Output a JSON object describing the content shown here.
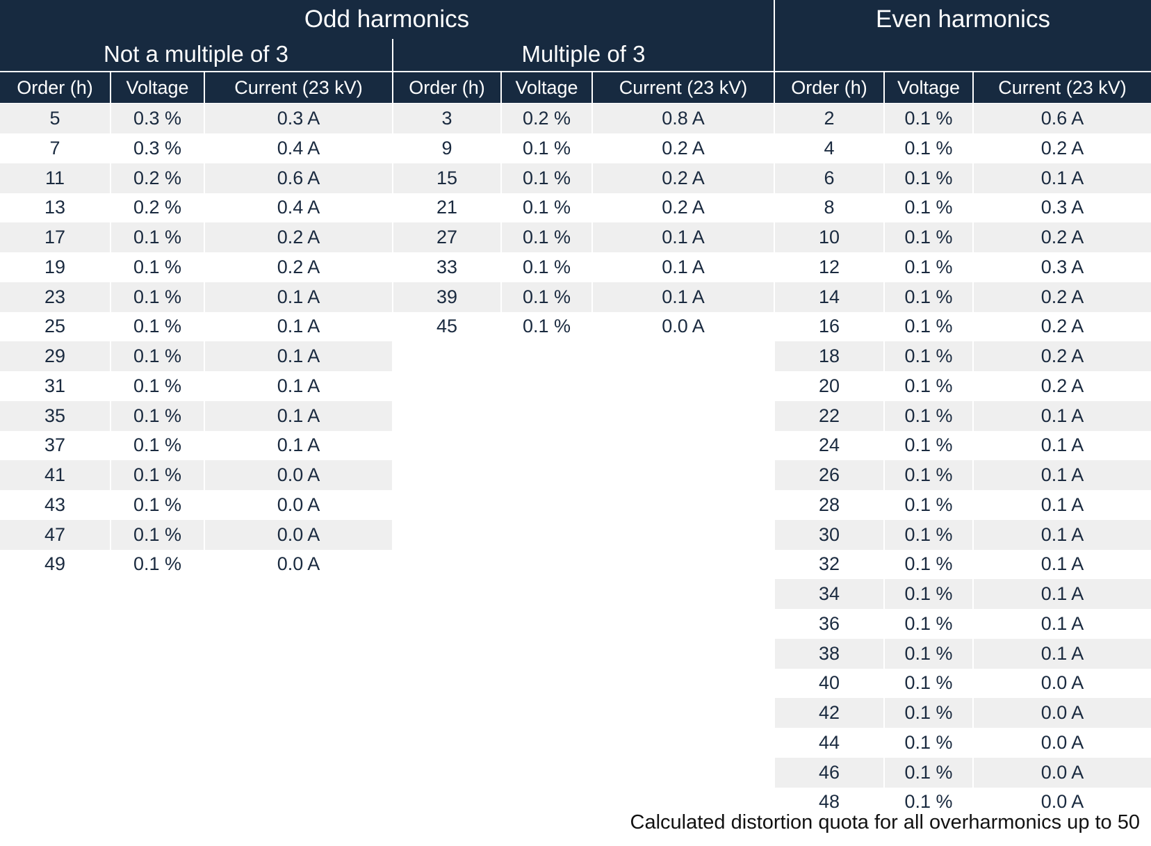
{
  "odd_harmonics": {
    "title": "Odd harmonics",
    "not_multiple_of_3": {
      "title": "Not a multiple of 3",
      "columns": [
        "Order (h)",
        "Voltage",
        "Current (23 kV)"
      ],
      "rows": [
        [
          "5",
          "0.3 %",
          "0.3 A"
        ],
        [
          "7",
          "0.3 %",
          "0.4 A"
        ],
        [
          "11",
          "0.2 %",
          "0.6 A"
        ],
        [
          "13",
          "0.2 %",
          "0.4 A"
        ],
        [
          "17",
          "0.1 %",
          "0.2 A"
        ],
        [
          "19",
          "0.1 %",
          "0.2 A"
        ],
        [
          "23",
          "0.1 %",
          "0.1 A"
        ],
        [
          "25",
          "0.1 %",
          "0.1 A"
        ],
        [
          "29",
          "0.1 %",
          "0.1 A"
        ],
        [
          "31",
          "0.1 %",
          "0.1 A"
        ],
        [
          "35",
          "0.1 %",
          "0.1 A"
        ],
        [
          "37",
          "0.1 %",
          "0.1 A"
        ],
        [
          "41",
          "0.1 %",
          "0.0 A"
        ],
        [
          "43",
          "0.1 %",
          "0.0 A"
        ],
        [
          "47",
          "0.1 %",
          "0.0 A"
        ],
        [
          "49",
          "0.1 %",
          "0.0 A"
        ]
      ]
    },
    "multiple_of_3": {
      "title": "Multiple of 3",
      "columns": [
        "Order (h)",
        "Voltage",
        "Current (23 kV)"
      ],
      "rows": [
        [
          "3",
          "0.2 %",
          "0.8 A"
        ],
        [
          "9",
          "0.1 %",
          "0.2 A"
        ],
        [
          "15",
          "0.1 %",
          "0.2 A"
        ],
        [
          "21",
          "0.1 %",
          "0.2 A"
        ],
        [
          "27",
          "0.1 %",
          "0.1 A"
        ],
        [
          "33",
          "0.1 %",
          "0.1 A"
        ],
        [
          "39",
          "0.1 %",
          "0.1 A"
        ],
        [
          "45",
          "0.1 %",
          "0.0 A"
        ]
      ]
    }
  },
  "even_harmonics": {
    "title": "Even harmonics",
    "columns": [
      "Order (h)",
      "Voltage",
      "Current (23 kV)"
    ],
    "rows": [
      [
        "2",
        "0.1 %",
        "0.6 A"
      ],
      [
        "4",
        "0.1 %",
        "0.2 A"
      ],
      [
        "6",
        "0.1 %",
        "0.1 A"
      ],
      [
        "8",
        "0.1 %",
        "0.3 A"
      ],
      [
        "10",
        "0.1 %",
        "0.2 A"
      ],
      [
        "12",
        "0.1 %",
        "0.3 A"
      ],
      [
        "14",
        "0.1 %",
        "0.2 A"
      ],
      [
        "16",
        "0.1 %",
        "0.2 A"
      ],
      [
        "18",
        "0.1 %",
        "0.2 A"
      ],
      [
        "20",
        "0.1 %",
        "0.2 A"
      ],
      [
        "22",
        "0.1 %",
        "0.1 A"
      ],
      [
        "24",
        "0.1 %",
        "0.1 A"
      ],
      [
        "26",
        "0.1 %",
        "0.1 A"
      ],
      [
        "28",
        "0.1 %",
        "0.1 A"
      ],
      [
        "30",
        "0.1 %",
        "0.1 A"
      ],
      [
        "32",
        "0.1 %",
        "0.1 A"
      ],
      [
        "34",
        "0.1 %",
        "0.1 A"
      ],
      [
        "36",
        "0.1 %",
        "0.1 A"
      ],
      [
        "38",
        "0.1 %",
        "0.1 A"
      ],
      [
        "40",
        "0.1 %",
        "0.0 A"
      ],
      [
        "42",
        "0.1 %",
        "0.0 A"
      ],
      [
        "44",
        "0.1 %",
        "0.0 A"
      ],
      [
        "46",
        "0.1 %",
        "0.0 A"
      ],
      [
        "48",
        "0.1 %",
        "0.0 A"
      ]
    ]
  },
  "footnote": "Calculated distortion quota for all overharmonics up to 50",
  "colors": {
    "header_bg": "#172a40",
    "header_text": "#ffffff",
    "row_shade": "#efefef",
    "cell_text": "#1a2a3f"
  }
}
